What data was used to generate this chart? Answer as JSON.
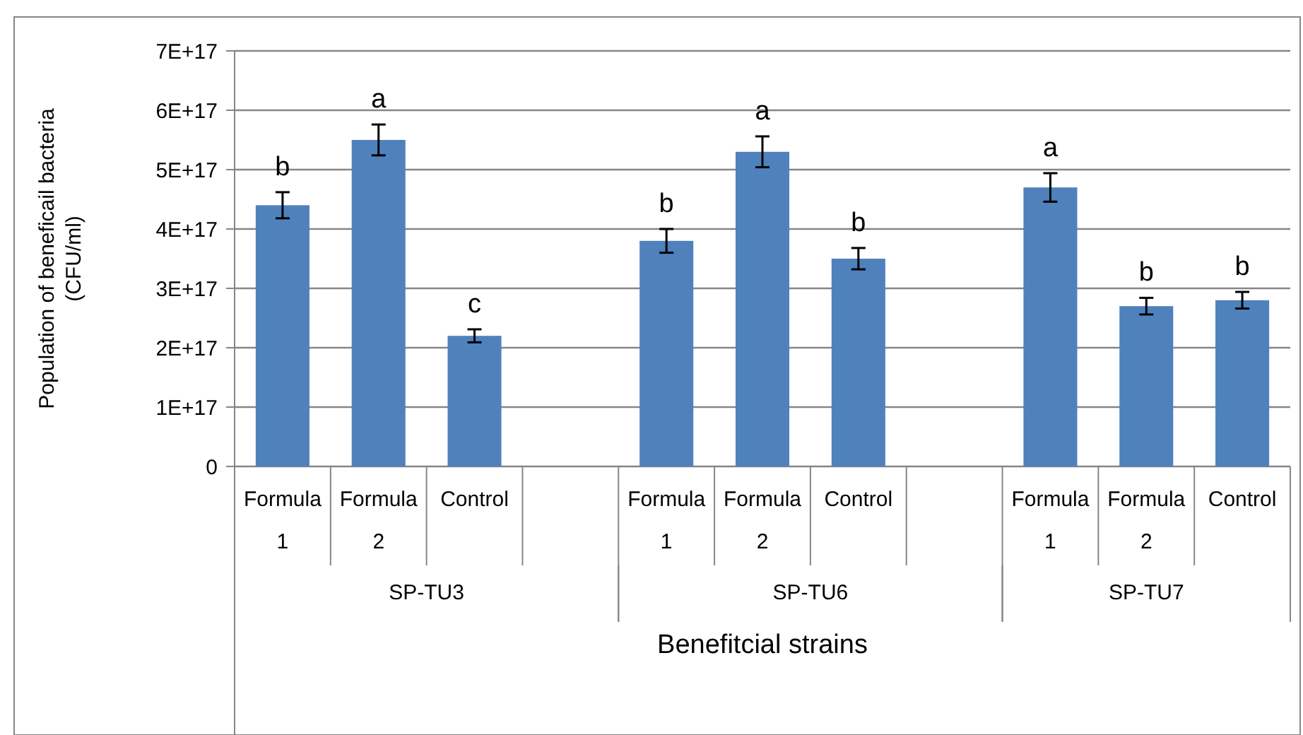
{
  "chart_data": {
    "type": "bar",
    "xlabel": "Benefitcial strains",
    "ylabel": "Population of beneficail bacteria (CFU/ml)",
    "categories": [
      "Formula 1",
      "Formula 2",
      "Control",
      null,
      "Formula 1",
      "Formula 2",
      "Control",
      null,
      "Formula 1",
      "Formula 2",
      "Control"
    ],
    "values": [
      4.4e+17,
      5.5e+17,
      2.2e+17,
      null,
      3.8e+17,
      5.3e+17,
      3.5e+17,
      null,
      4.7e+17,
      2.7e+17,
      2.8e+17
    ],
    "errors": [
      2.2e+16,
      2.6e+16,
      1.1e+16,
      null,
      2e+16,
      2.6e+16,
      1.8e+16,
      null,
      2.4e+16,
      1.4e+16,
      1.4e+16
    ],
    "value_labels": [
      "b",
      "a",
      "c",
      null,
      "b",
      "a",
      "b",
      null,
      "a",
      "b",
      "b"
    ],
    "color": "#4f81bd",
    "annotations": [
      "SP-TU3",
      "SP-TU6",
      "SP-TU7"
    ],
    "ylim": [
      0,
      7e+17
    ],
    "yticks": [
      0,
      {
        "value": 1e+17,
        "label": "1E+17"
      },
      {
        "value": 2e+17,
        "label": "2E+17"
      },
      {
        "value": 3e+17,
        "label": "3E+17"
      },
      {
        "value": 4e+17,
        "label": "4E+17"
      },
      {
        "value": 5e+17,
        "label": "5E+17"
      },
      {
        "value": 6e+17,
        "label": "6E+17"
      },
      {
        "value": 7e+17,
        "label": "7E+17"
      }
    ],
    "grid": "y"
  }
}
